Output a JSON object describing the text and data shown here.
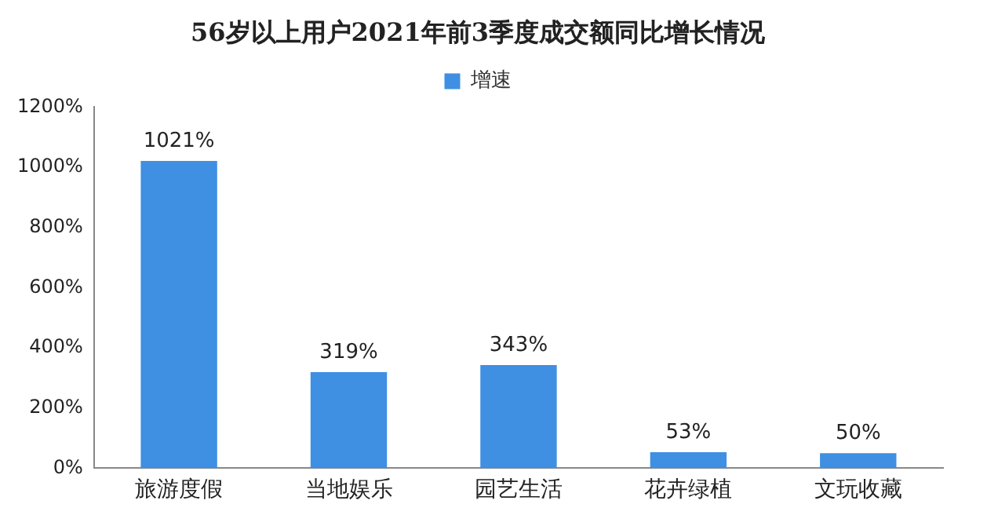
{
  "chart_data": {
    "type": "bar",
    "title": "56岁以上用户2021年前3季度成交额同比增长情况",
    "categories": [
      "旅游度假",
      "当地娱乐",
      "园艺生活",
      "花卉绿植",
      "文玩收藏"
    ],
    "series": [
      {
        "name": "增速",
        "color": "#3f8fe3",
        "values": [
          1021,
          319,
          343,
          53,
          50
        ],
        "value_labels": [
          "1021%",
          "319%",
          "343%",
          "53%",
          "50%"
        ]
      }
    ],
    "ylim": [
      0,
      1200
    ],
    "yticks": [
      {
        "value": 0,
        "label": "0%"
      },
      {
        "value": 200,
        "label": "200%"
      },
      {
        "value": 400,
        "label": "400%"
      },
      {
        "value": 600,
        "label": "600%"
      },
      {
        "value": 800,
        "label": "800%"
      },
      {
        "value": 1000,
        "label": "1000%"
      },
      {
        "value": 1200,
        "label": "1200%"
      }
    ],
    "grid": false,
    "legend": "top"
  }
}
